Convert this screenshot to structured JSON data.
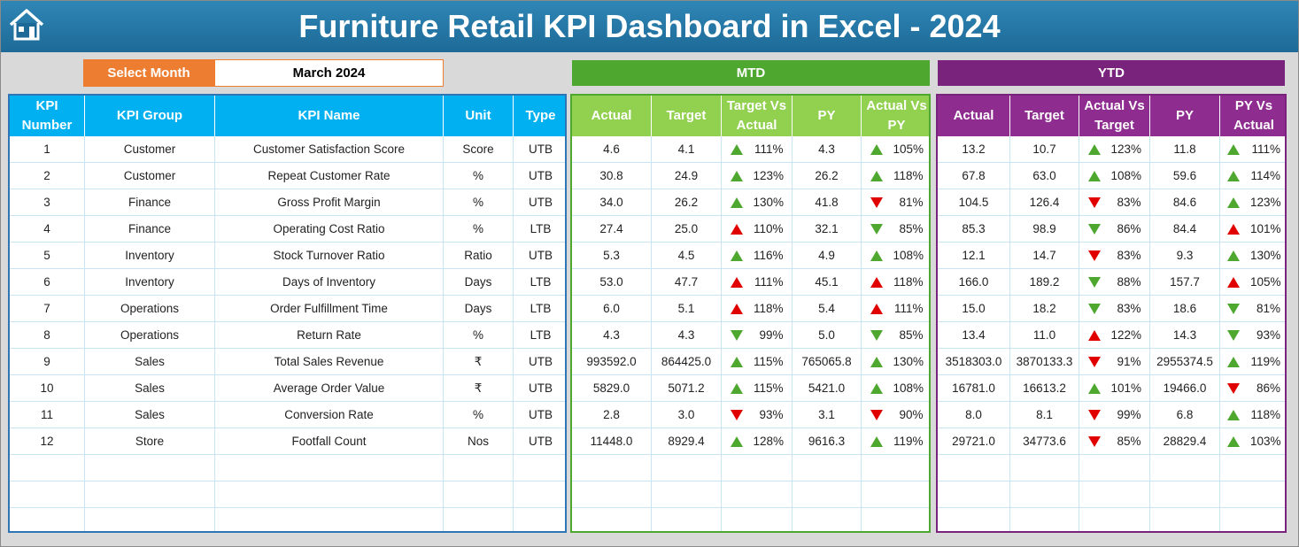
{
  "header": {
    "title": "Furniture Retail KPI Dashboard in Excel - 2024"
  },
  "selector": {
    "label": "Select Month",
    "value": "March 2024"
  },
  "sections": {
    "mtd": "MTD",
    "ytd": "YTD"
  },
  "kpi_table": {
    "columns": [
      "KPI Number",
      "KPI Group",
      "KPI Name",
      "Unit",
      "Type"
    ],
    "rows": [
      [
        "1",
        "Customer",
        "Customer Satisfaction Score",
        "Score",
        "UTB"
      ],
      [
        "2",
        "Customer",
        "Repeat Customer Rate",
        "%",
        "UTB"
      ],
      [
        "3",
        "Finance",
        "Gross Profit Margin",
        "%",
        "UTB"
      ],
      [
        "4",
        "Finance",
        "Operating Cost Ratio",
        "%",
        "LTB"
      ],
      [
        "5",
        "Inventory",
        "Stock Turnover Ratio",
        "Ratio",
        "UTB"
      ],
      [
        "6",
        "Inventory",
        "Days of Inventory",
        "Days",
        "LTB"
      ],
      [
        "7",
        "Operations",
        "Order Fulfillment Time",
        "Days",
        "LTB"
      ],
      [
        "8",
        "Operations",
        "Return Rate",
        "%",
        "LTB"
      ],
      [
        "9",
        "Sales",
        "Total Sales Revenue",
        "₹",
        "UTB"
      ],
      [
        "10",
        "Sales",
        "Average Order Value",
        "₹",
        "UTB"
      ],
      [
        "11",
        "Sales",
        "Conversion Rate",
        "%",
        "UTB"
      ],
      [
        "12",
        "Store",
        "Footfall Count",
        "Nos",
        "UTB"
      ]
    ]
  },
  "mtd_table": {
    "columns": [
      "Actual",
      "Target",
      "Target Vs Actual",
      "PY",
      "Actual Vs PY"
    ],
    "rows": [
      [
        "4.6",
        "4.1",
        {
          "value": "111%",
          "arrow": "up",
          "arrow_color": "#4ea72e"
        },
        "4.3",
        {
          "value": "105%",
          "arrow": "up",
          "arrow_color": "#4ea72e"
        }
      ],
      [
        "30.8",
        "24.9",
        {
          "value": "123%",
          "arrow": "up",
          "arrow_color": "#4ea72e"
        },
        "26.2",
        {
          "value": "118%",
          "arrow": "up",
          "arrow_color": "#4ea72e"
        }
      ],
      [
        "34.0",
        "26.2",
        {
          "value": "130%",
          "arrow": "up",
          "arrow_color": "#4ea72e"
        },
        "41.8",
        {
          "value": "81%",
          "arrow": "down",
          "arrow_color": "#e00000"
        }
      ],
      [
        "27.4",
        "25.0",
        {
          "value": "110%",
          "arrow": "up",
          "arrow_color": "#e00000"
        },
        "32.1",
        {
          "value": "85%",
          "arrow": "down",
          "arrow_color": "#4ea72e"
        }
      ],
      [
        "5.3",
        "4.5",
        {
          "value": "116%",
          "arrow": "up",
          "arrow_color": "#4ea72e"
        },
        "4.9",
        {
          "value": "108%",
          "arrow": "up",
          "arrow_color": "#4ea72e"
        }
      ],
      [
        "53.0",
        "47.7",
        {
          "value": "111%",
          "arrow": "up",
          "arrow_color": "#e00000"
        },
        "45.1",
        {
          "value": "118%",
          "arrow": "up",
          "arrow_color": "#e00000"
        }
      ],
      [
        "6.0",
        "5.1",
        {
          "value": "118%",
          "arrow": "up",
          "arrow_color": "#e00000"
        },
        "5.4",
        {
          "value": "111%",
          "arrow": "up",
          "arrow_color": "#e00000"
        }
      ],
      [
        "4.3",
        "4.3",
        {
          "value": "99%",
          "arrow": "down",
          "arrow_color": "#4ea72e"
        },
        "5.0",
        {
          "value": "85%",
          "arrow": "down",
          "arrow_color": "#4ea72e"
        }
      ],
      [
        "993592.0",
        "864425.0",
        {
          "value": "115%",
          "arrow": "up",
          "arrow_color": "#4ea72e"
        },
        "765065.8",
        {
          "value": "130%",
          "arrow": "up",
          "arrow_color": "#4ea72e"
        }
      ],
      [
        "5829.0",
        "5071.2",
        {
          "value": "115%",
          "arrow": "up",
          "arrow_color": "#4ea72e"
        },
        "5421.0",
        {
          "value": "108%",
          "arrow": "up",
          "arrow_color": "#4ea72e"
        }
      ],
      [
        "2.8",
        "3.0",
        {
          "value": "93%",
          "arrow": "down",
          "arrow_color": "#e00000"
        },
        "3.1",
        {
          "value": "90%",
          "arrow": "down",
          "arrow_color": "#e00000"
        }
      ],
      [
        "11448.0",
        "8929.4",
        {
          "value": "128%",
          "arrow": "up",
          "arrow_color": "#4ea72e"
        },
        "9616.3",
        {
          "value": "119%",
          "arrow": "up",
          "arrow_color": "#4ea72e"
        }
      ]
    ]
  },
  "ytd_table": {
    "columns": [
      "Actual",
      "Target",
      "Actual Vs Target",
      "PY",
      "PY Vs Actual"
    ],
    "rows": [
      [
        "13.2",
        "10.7",
        {
          "value": "123%",
          "arrow": "up",
          "arrow_color": "#4ea72e"
        },
        "11.8",
        {
          "value": "111%",
          "arrow": "up",
          "arrow_color": "#4ea72e"
        }
      ],
      [
        "67.8",
        "63.0",
        {
          "value": "108%",
          "arrow": "up",
          "arrow_color": "#4ea72e"
        },
        "59.6",
        {
          "value": "114%",
          "arrow": "up",
          "arrow_color": "#4ea72e"
        }
      ],
      [
        "104.5",
        "126.4",
        {
          "value": "83%",
          "arrow": "down",
          "arrow_color": "#e00000"
        },
        "84.6",
        {
          "value": "123%",
          "arrow": "up",
          "arrow_color": "#4ea72e"
        }
      ],
      [
        "85.3",
        "98.9",
        {
          "value": "86%",
          "arrow": "down",
          "arrow_color": "#4ea72e"
        },
        "84.4",
        {
          "value": "101%",
          "arrow": "up",
          "arrow_color": "#e00000"
        }
      ],
      [
        "12.1",
        "14.7",
        {
          "value": "83%",
          "arrow": "down",
          "arrow_color": "#e00000"
        },
        "9.3",
        {
          "value": "130%",
          "arrow": "up",
          "arrow_color": "#4ea72e"
        }
      ],
      [
        "166.0",
        "189.2",
        {
          "value": "88%",
          "arrow": "down",
          "arrow_color": "#4ea72e"
        },
        "157.7",
        {
          "value": "105%",
          "arrow": "up",
          "arrow_color": "#e00000"
        }
      ],
      [
        "15.0",
        "18.2",
        {
          "value": "83%",
          "arrow": "down",
          "arrow_color": "#4ea72e"
        },
        "18.6",
        {
          "value": "81%",
          "arrow": "down",
          "arrow_color": "#4ea72e"
        }
      ],
      [
        "13.4",
        "11.0",
        {
          "value": "122%",
          "arrow": "up",
          "arrow_color": "#e00000"
        },
        "14.3",
        {
          "value": "93%",
          "arrow": "down",
          "arrow_color": "#4ea72e"
        }
      ],
      [
        "3518303.0",
        "3870133.3",
        {
          "value": "91%",
          "arrow": "down",
          "arrow_color": "#e00000"
        },
        "2955374.5",
        {
          "value": "119%",
          "arrow": "up",
          "arrow_color": "#4ea72e"
        }
      ],
      [
        "16781.0",
        "16613.2",
        {
          "value": "101%",
          "arrow": "up",
          "arrow_color": "#4ea72e"
        },
        "19466.0",
        {
          "value": "86%",
          "arrow": "down",
          "arrow_color": "#e00000"
        }
      ],
      [
        "8.0",
        "8.1",
        {
          "value": "99%",
          "arrow": "down",
          "arrow_color": "#e00000"
        },
        "6.8",
        {
          "value": "118%",
          "arrow": "up",
          "arrow_color": "#4ea72e"
        }
      ],
      [
        "29721.0",
        "34773.6",
        {
          "value": "85%",
          "arrow": "down",
          "arrow_color": "#e00000"
        },
        "28829.4",
        {
          "value": "103%",
          "arrow": "up",
          "arrow_color": "#4ea72e"
        }
      ]
    ]
  }
}
